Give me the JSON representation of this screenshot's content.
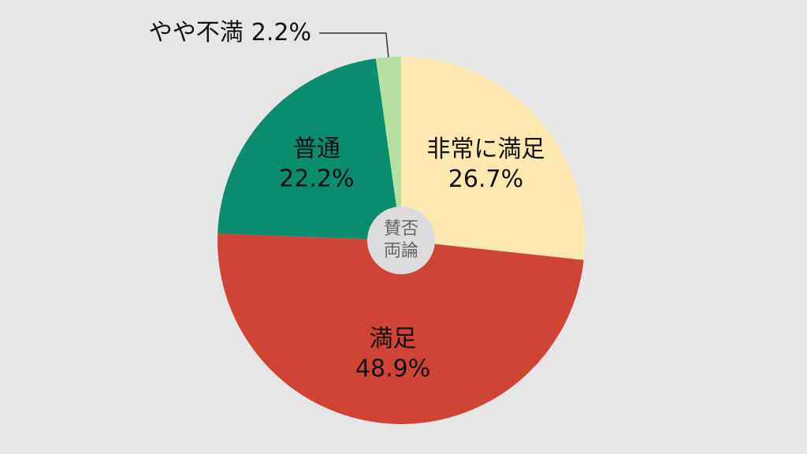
{
  "chart_data": {
    "type": "pie",
    "categories": [
      "非常に満足",
      "満足",
      "普通",
      "やや不満"
    ],
    "values": [
      26.7,
      48.9,
      22.2,
      2.2
    ],
    "value_labels": [
      "26.7%",
      "48.9%",
      "22.2%",
      "2.2%"
    ],
    "colors": [
      "#fde8b0",
      "#d04436",
      "#0a8c6e",
      "#b7e0a0"
    ],
    "center_label": [
      "賛否",
      "両論"
    ]
  }
}
